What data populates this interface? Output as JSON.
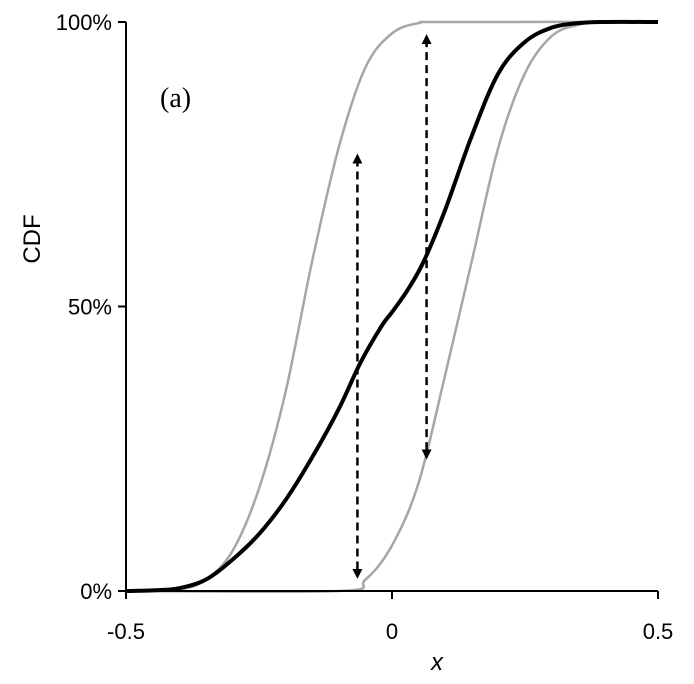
{
  "chart_data": {
    "type": "line",
    "panel_label": "(a)",
    "xlabel": "x",
    "ylabel": "CDF",
    "xlim": [
      -0.5,
      0.5
    ],
    "ylim": [
      0,
      100
    ],
    "x_ticks": [
      -0.5,
      0,
      0.5
    ],
    "x_tick_labels": [
      "-0.5",
      "0",
      "0.5"
    ],
    "y_ticks": [
      0,
      50,
      100
    ],
    "y_tick_labels": [
      "0%",
      "50%",
      "100%"
    ],
    "grid": false,
    "series": [
      {
        "color": "#000000",
        "points": [
          [
            -0.5,
            0
          ],
          [
            -0.45,
            0.1
          ],
          [
            -0.4,
            0.5
          ],
          [
            -0.35,
            2
          ],
          [
            -0.3,
            5.5
          ],
          [
            -0.25,
            10
          ],
          [
            -0.2,
            16
          ],
          [
            -0.15,
            23.5
          ],
          [
            -0.1,
            32
          ],
          [
            -0.06,
            40
          ],
          [
            -0.02,
            46.5
          ],
          [
            0,
            49
          ],
          [
            0.03,
            53
          ],
          [
            0.06,
            58
          ],
          [
            0.1,
            67
          ],
          [
            0.15,
            80
          ],
          [
            0.2,
            91
          ],
          [
            0.25,
            96.5
          ],
          [
            0.3,
            99
          ],
          [
            0.35,
            99.8
          ],
          [
            0.4,
            100
          ],
          [
            0.5,
            100
          ]
        ]
      },
      {
        "color": "#a6a6a6",
        "points": [
          [
            -0.5,
            0
          ],
          [
            -0.4,
            0.3
          ],
          [
            -0.35,
            2
          ],
          [
            -0.3,
            7
          ],
          [
            -0.25,
            18
          ],
          [
            -0.2,
            35
          ],
          [
            -0.15,
            58
          ],
          [
            -0.1,
            78
          ],
          [
            -0.05,
            92
          ],
          [
            0,
            98
          ],
          [
            0.05,
            99.8
          ],
          [
            0.1,
            100
          ],
          [
            0.5,
            100
          ]
        ]
      },
      {
        "color": "#a6a6a6",
        "points": [
          [
            -0.5,
            0
          ],
          [
            -0.1,
            0
          ],
          [
            -0.05,
            2
          ],
          [
            0,
            8
          ],
          [
            0.05,
            19
          ],
          [
            0.1,
            38
          ],
          [
            0.15,
            58
          ],
          [
            0.2,
            78
          ],
          [
            0.25,
            91
          ],
          [
            0.3,
            97.5
          ],
          [
            0.35,
            99.5
          ],
          [
            0.4,
            100
          ],
          [
            0.5,
            100
          ]
        ]
      }
    ],
    "annotations": [
      {
        "type": "double-arrow",
        "style": "dashed",
        "x": -0.065,
        "y_from": 76,
        "y_to": 3
      },
      {
        "type": "double-arrow",
        "style": "dashed",
        "x": 0.065,
        "y_from": 97,
        "y_to": 24
      }
    ]
  }
}
